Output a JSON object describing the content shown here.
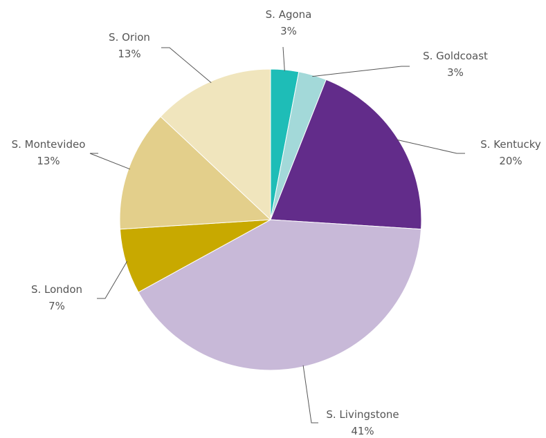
{
  "chart_data": {
    "type": "pie",
    "title": "",
    "start_angle_deg": 0,
    "direction": "clockwise",
    "slices": [
      {
        "label": "S. Agona",
        "value": 3,
        "pct_label": "3%",
        "color": "#1ebdb7"
      },
      {
        "label": "S. Goldcoast",
        "value": 3,
        "pct_label": "3%",
        "color": "#a3d9d9"
      },
      {
        "label": "S. Kentucky",
        "value": 20,
        "pct_label": "20%",
        "color": "#622c8a"
      },
      {
        "label": "S. Livingstone",
        "value": 41,
        "pct_label": "41%",
        "color": "#c8b9d8"
      },
      {
        "label": "S. London",
        "value": 7,
        "pct_label": "7%",
        "color": "#c8a900"
      },
      {
        "label": "S. Montevideo",
        "value": 13,
        "pct_label": "13%",
        "color": "#e3cf8b"
      },
      {
        "label": "S. Orion",
        "value": 13,
        "pct_label": "13%",
        "color": "#f0e5bd"
      }
    ]
  }
}
